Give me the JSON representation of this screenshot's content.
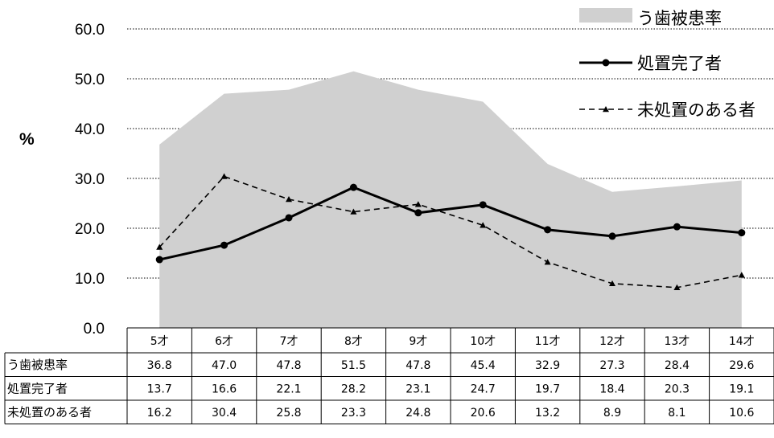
{
  "chart_data": {
    "type": "line",
    "ylabel": "%",
    "ylim": [
      0,
      60
    ],
    "yticks": [
      "0.0",
      "10.0",
      "20.0",
      "30.0",
      "40.0",
      "50.0",
      "60.0"
    ],
    "grid": "horizontal-dotted",
    "legend_position": "top-right",
    "categories": [
      "5才",
      "6才",
      "7才",
      "8才",
      "9才",
      "10才",
      "11才",
      "12才",
      "13才",
      "14才"
    ],
    "series": [
      {
        "name": "う歯被患率",
        "kind": "area",
        "color": "#d0d0d0",
        "values": [
          36.8,
          47.0,
          47.8,
          51.5,
          47.8,
          45.4,
          32.9,
          27.3,
          28.4,
          29.6
        ]
      },
      {
        "name": "処置完了者",
        "kind": "line-solid-circle",
        "color": "#000000",
        "values": [
          13.7,
          16.6,
          22.1,
          28.2,
          23.1,
          24.7,
          19.7,
          18.4,
          20.3,
          19.1
        ]
      },
      {
        "name": "未処置のある者",
        "kind": "line-dashed-triangle",
        "color": "#000000",
        "values": [
          16.2,
          30.4,
          25.8,
          23.3,
          24.8,
          20.6,
          13.2,
          8.9,
          8.1,
          10.6
        ]
      }
    ],
    "table": {
      "rows": [
        {
          "label": "う歯被患率",
          "values": [
            "36.8",
            "47.0",
            "47.8",
            "51.5",
            "47.8",
            "45.4",
            "32.9",
            "27.3",
            "28.4",
            "29.6"
          ]
        },
        {
          "label": "処置完了者",
          "values": [
            "13.7",
            "16.6",
            "22.1",
            "28.2",
            "23.1",
            "24.7",
            "19.7",
            "18.4",
            "20.3",
            "19.1"
          ]
        },
        {
          "label": "未処置のある者",
          "values": [
            "16.2",
            "30.4",
            "25.8",
            "23.3",
            "24.8",
            "20.6",
            "13.2",
            "8.9",
            "8.1",
            "10.6"
          ]
        }
      ]
    }
  }
}
